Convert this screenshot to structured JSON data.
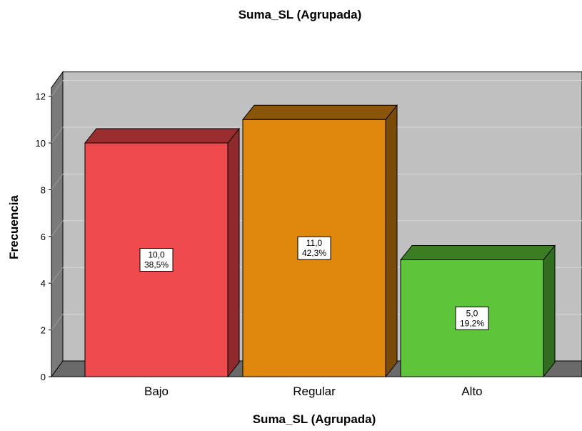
{
  "chart_data": {
    "type": "bar",
    "title": "Suma_SL (Agrupada)",
    "xlabel": "Suma_SL (Agrupada)",
    "ylabel": "Frecuencia",
    "categories": [
      "Bajo",
      "Regular",
      "Alto"
    ],
    "values": [
      10,
      11,
      5
    ],
    "value_labels": [
      "10,0",
      "11,0",
      "5,0"
    ],
    "percent_labels": [
      "38,5%",
      "42,3%",
      "19,2%"
    ],
    "y_ticks": [
      "0",
      "2",
      "4",
      "6",
      "8",
      "10",
      "12"
    ],
    "ylim": [
      0,
      12
    ],
    "grid": true,
    "legend": "none",
    "style": "3d",
    "colors": {
      "bars": [
        "#ef4b4e",
        "#e0880e",
        "#5ec43a"
      ],
      "bar_sides": [
        "#8f2a2c",
        "#7a4a08",
        "#316d1e"
      ],
      "bar_tops": [
        "#9a2d30",
        "#8a5409",
        "#3a7d22"
      ],
      "back_wall": "#c0c0c0",
      "side_wall": "#7a7a7a",
      "floor": "#6a6a6a",
      "gridline": "#d8d8d8"
    }
  }
}
